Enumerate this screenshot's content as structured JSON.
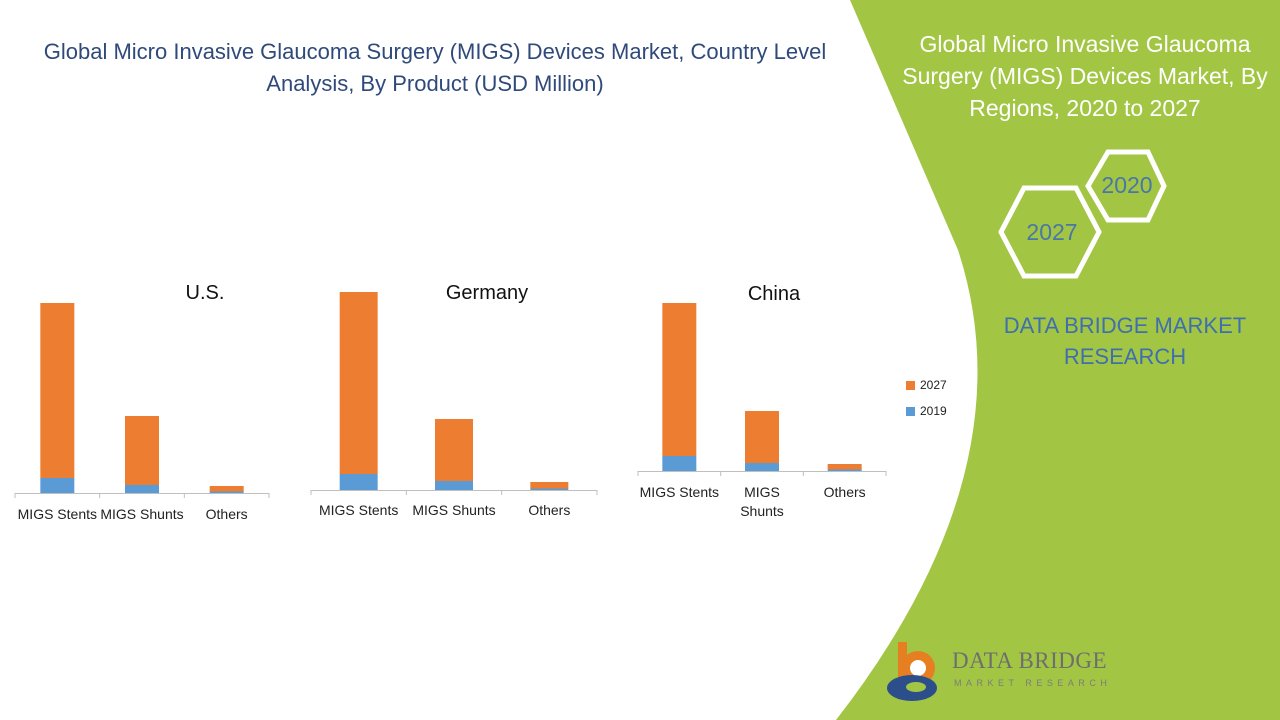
{
  "page": {
    "title": "Global Micro Invasive Glaucoma Surgery (MIGS) Devices Market, Country Level Analysis, By Product (USD Million)",
    "right_panel": {
      "title": "Global Micro Invasive Glaucoma Surgery (MIGS) Devices Market, By Regions, 2020 to 2027",
      "hex_year_front": "2027",
      "hex_year_back": "2020",
      "brand_text": "DATA BRIDGE MARKET RESEARCH"
    },
    "logo": {
      "name": "DATA BRIDGE",
      "subtitle": "MARKET RESEARCH"
    },
    "colors": {
      "green": "#a2c644",
      "series_2027": "#ed7d31",
      "series_2019": "#5b9bd5",
      "title_blue": "#2f4a7a"
    }
  },
  "chart_data": [
    {
      "type": "bar",
      "stacked": true,
      "title": "U.S.",
      "categories": [
        "MIGS Stents",
        "MIGS Shunts",
        "Others"
      ],
      "series": [
        {
          "name": "2019",
          "values": [
            15,
            8,
            1.5
          ]
        },
        {
          "name": "2027",
          "values": [
            175,
            69,
            5.5
          ]
        }
      ],
      "ylim": [
        0,
        190
      ]
    },
    {
      "type": "bar",
      "stacked": true,
      "title": "Germany",
      "categories": [
        "MIGS Stents",
        "MIGS Shunts",
        "Others"
      ],
      "series": [
        {
          "name": "2019",
          "values": [
            16,
            9,
            1.5
          ]
        },
        {
          "name": "2027",
          "values": [
            182,
            62,
            6.5
          ]
        }
      ],
      "ylim": [
        0,
        198
      ]
    },
    {
      "type": "bar",
      "stacked": true,
      "title": "China",
      "categories": [
        "MIGS Stents",
        "MIGS Shunts",
        "Others"
      ],
      "series": [
        {
          "name": "2019",
          "values": [
            15,
            8,
            1.5
          ]
        },
        {
          "name": "2027",
          "values": [
            153,
            52,
            5.5
          ]
        }
      ],
      "ylim": [
        0,
        168
      ]
    }
  ],
  "legend": {
    "items": [
      {
        "label": "2027",
        "color": "#ed7d31"
      },
      {
        "label": "2019",
        "color": "#5b9bd5"
      }
    ]
  }
}
